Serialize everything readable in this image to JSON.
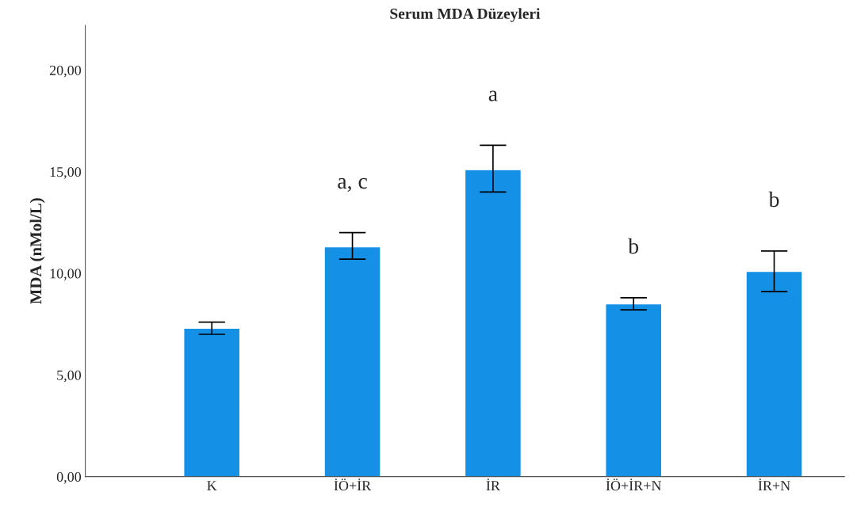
{
  "chart_data": {
    "type": "bar",
    "title": "Serum MDA Düzeyleri",
    "ylabel": "MDA (nMol/L)",
    "categories": [
      "K",
      "İÖ+İR",
      "İR",
      "İÖ+İR+N",
      "İR+N"
    ],
    "values": [
      7.3,
      11.3,
      15.1,
      8.5,
      10.1
    ],
    "errors": [
      [
        7.0,
        7.6
      ],
      [
        10.7,
        12.0
      ],
      [
        14.0,
        16.3
      ],
      [
        8.2,
        8.8
      ],
      [
        9.1,
        11.1
      ]
    ],
    "color": "#1490e6",
    "ylim": [
      0,
      22.2
    ],
    "yticks": [
      {
        "value": 0,
        "label": "0,00"
      },
      {
        "value": 5,
        "label": "5,00"
      },
      {
        "value": 10,
        "label": "10,00"
      },
      {
        "value": 15,
        "label": "15,00"
      },
      {
        "value": 20,
        "label": "20,00"
      }
    ],
    "value_labels": [
      null,
      "a, c",
      "a",
      "b",
      "b"
    ],
    "grid": false
  }
}
